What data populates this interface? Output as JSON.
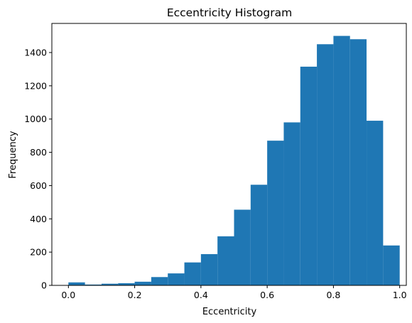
{
  "chart_data": {
    "type": "bar",
    "subtype": "histogram",
    "title": "Eccentricity Histogram",
    "xlabel": "Eccentricity",
    "ylabel": "Frequency",
    "bin_edges": [
      0.0,
      0.05,
      0.1,
      0.15,
      0.2,
      0.25,
      0.3,
      0.35,
      0.4,
      0.45,
      0.5,
      0.55,
      0.6,
      0.65,
      0.7,
      0.75,
      0.8,
      0.85,
      0.9,
      0.95,
      1.0
    ],
    "values": [
      18,
      5,
      10,
      13,
      22,
      50,
      72,
      138,
      188,
      295,
      455,
      605,
      870,
      980,
      1315,
      1450,
      1500,
      1480,
      990,
      240
    ],
    "xlim": [
      -0.05,
      1.02
    ],
    "ylim": [
      0,
      1575
    ],
    "x_ticks": [
      0.0,
      0.2,
      0.4,
      0.6,
      0.8,
      1.0
    ],
    "x_tick_labels": [
      "0.0",
      "0.2",
      "0.4",
      "0.6",
      "0.8",
      "1.0"
    ],
    "y_ticks": [
      0,
      200,
      400,
      600,
      800,
      1000,
      1200,
      1400
    ],
    "y_tick_labels": [
      "0",
      "200",
      "400",
      "600",
      "800",
      "1000",
      "1200",
      "1400"
    ],
    "bar_color": "#1f77b4",
    "grid": false,
    "legend": "none"
  }
}
